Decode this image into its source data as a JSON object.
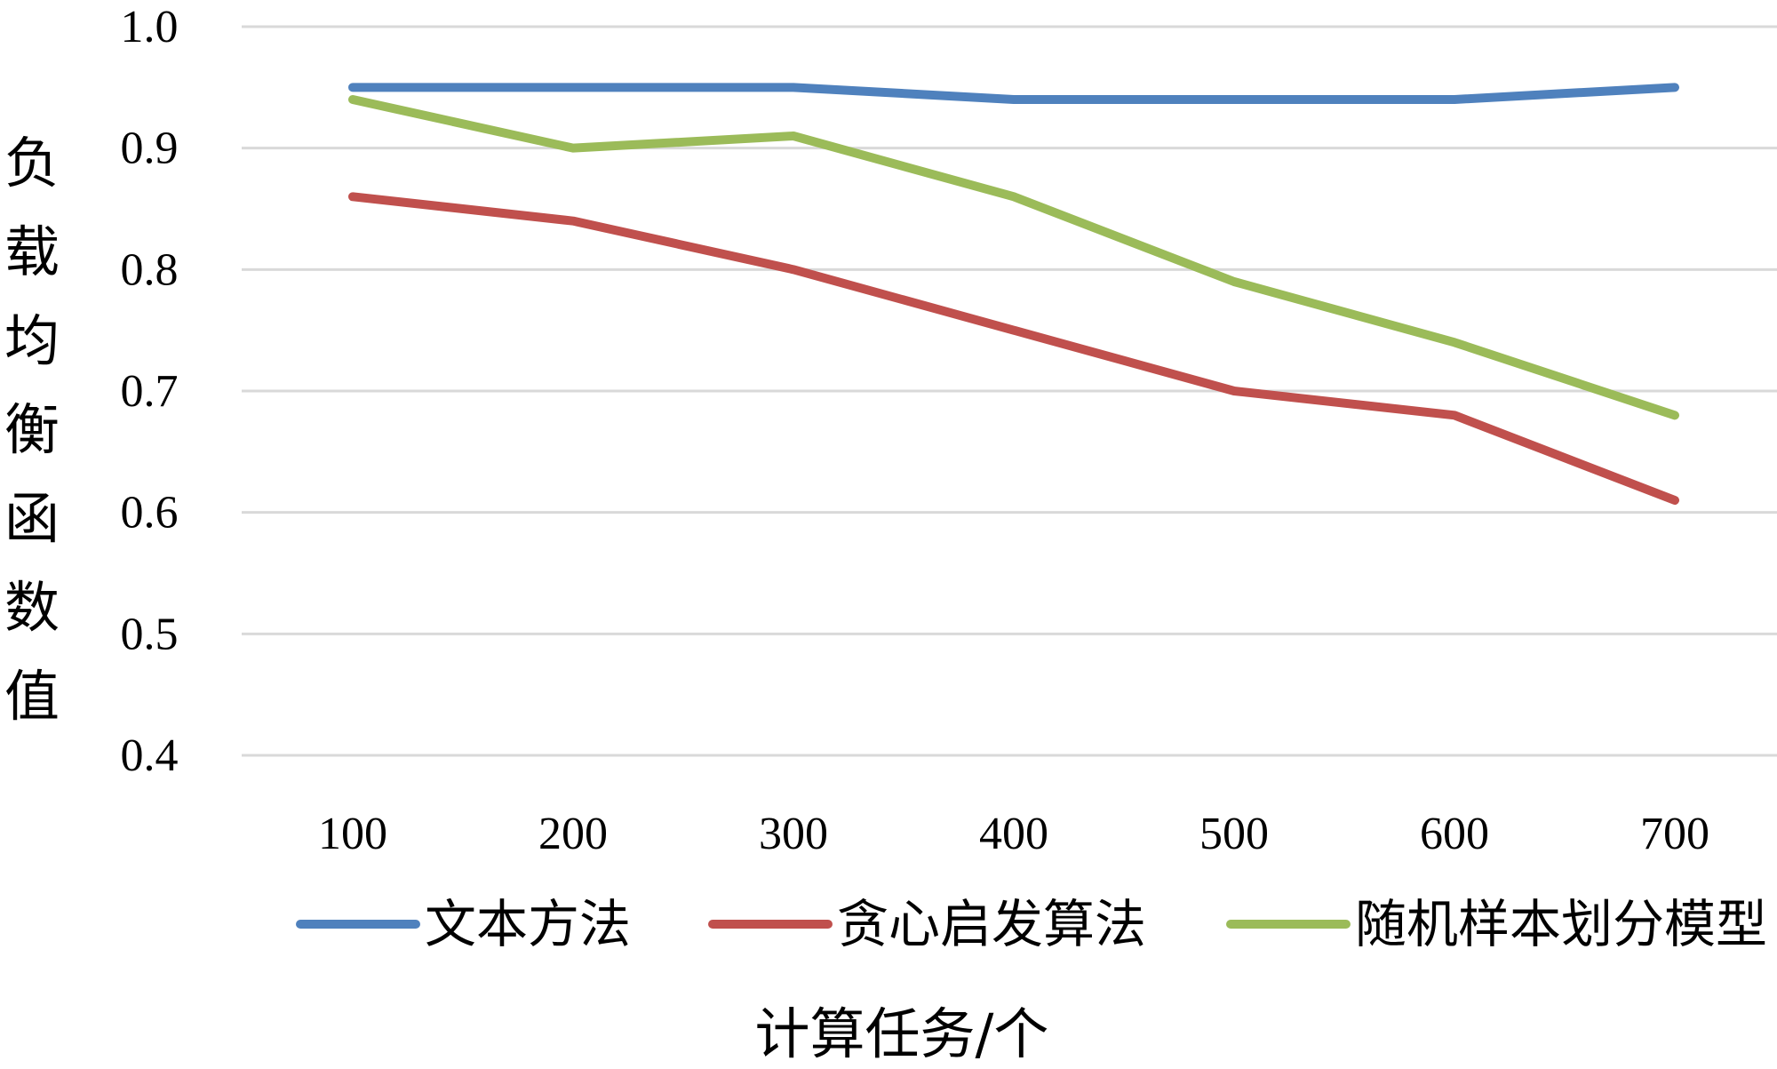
{
  "chart_data": {
    "type": "line",
    "title": "",
    "xlabel": "计算任务/个",
    "ylabel": "负载均衡函数值",
    "categories": [
      "100",
      "200",
      "300",
      "400",
      "500",
      "600",
      "700"
    ],
    "ylim": [
      0.4,
      1.0
    ],
    "yticks": [
      "0.4",
      "0.5",
      "0.6",
      "0.7",
      "0.8",
      "0.9",
      "1.0"
    ],
    "grid": true,
    "legend_position": "bottom",
    "series": [
      {
        "name": "文本方法",
        "color": "#4f81bd",
        "values": [
          0.95,
          0.95,
          0.95,
          0.94,
          0.94,
          0.94,
          0.95
        ]
      },
      {
        "name": "贪心启发算法",
        "color": "#c0504d",
        "values": [
          0.86,
          0.84,
          0.8,
          0.75,
          0.7,
          0.68,
          0.61
        ]
      },
      {
        "name": "随机样本划分模型",
        "color": "#9bbb59",
        "values": [
          0.94,
          0.9,
          0.91,
          0.86,
          0.79,
          0.74,
          0.68
        ]
      }
    ]
  }
}
